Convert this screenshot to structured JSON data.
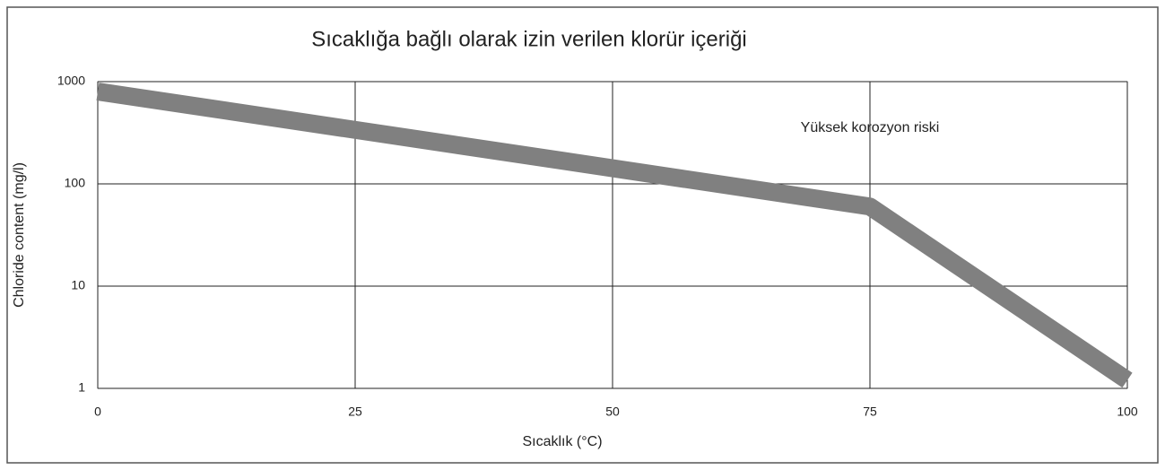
{
  "chart_data": {
    "type": "line",
    "title": "Sıcaklığa bağlı olarak izin verilen klorür içeriği",
    "xlabel": "Sıcaklık (°C)",
    "ylabel": "Chloride content (mg/l)",
    "annotation": "Yüksek korozyon riski",
    "x": [
      0,
      75,
      100
    ],
    "values": [
      800,
      60,
      1.2
    ],
    "color": "#808080",
    "xlim": [
      0,
      100
    ],
    "xticks": [
      0,
      25,
      50,
      75,
      100
    ],
    "ylim": [
      1,
      1000
    ],
    "yticks": [
      1,
      10,
      100,
      1000
    ],
    "ylog": true,
    "grid": true
  }
}
